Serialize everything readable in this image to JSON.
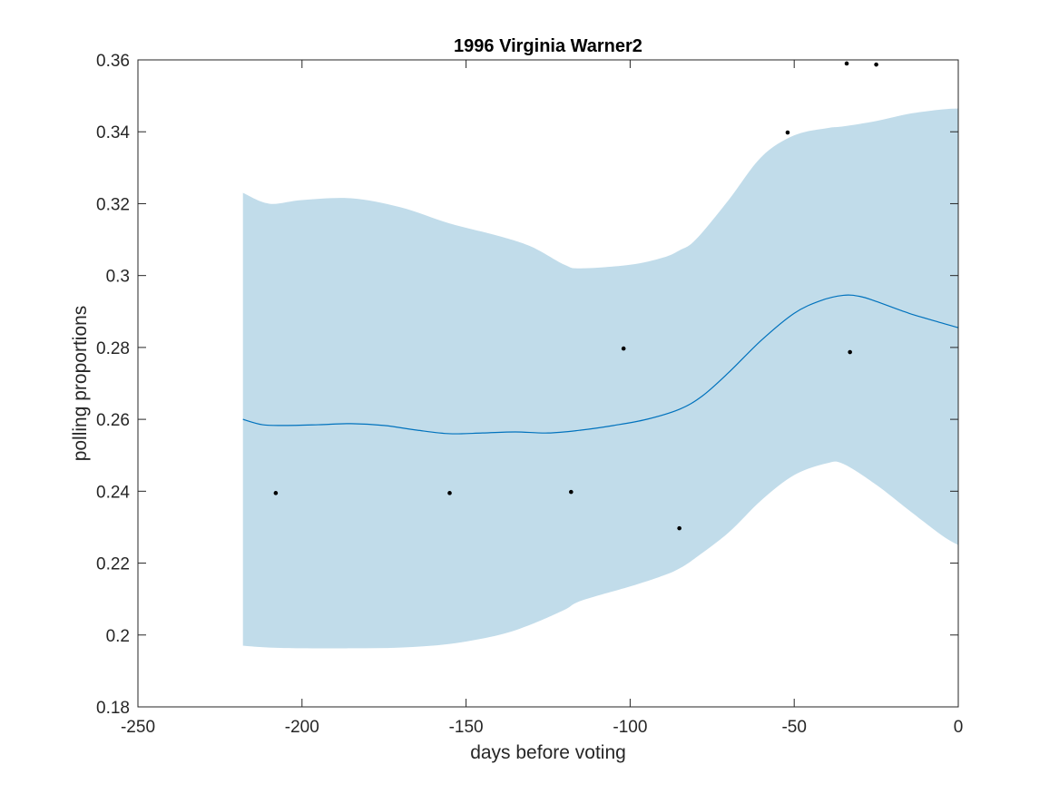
{
  "chart_data": {
    "type": "line",
    "title": "1996 Virginia Warner2",
    "xlabel": "days before voting",
    "ylabel": "polling proportions",
    "xlim": [
      -250,
      0
    ],
    "ylim": [
      0.18,
      0.36
    ],
    "xticks": [
      -250,
      -200,
      -150,
      -100,
      -50,
      0
    ],
    "xtick_labels": [
      "-250",
      "-200",
      "-150",
      "-100",
      "-50",
      "0"
    ],
    "yticks": [
      0.18,
      0.2,
      0.22,
      0.24,
      0.26,
      0.28,
      0.3,
      0.32,
      0.34,
      0.36
    ],
    "ytick_labels": [
      "0.18",
      "0.2",
      "0.22",
      "0.24",
      "0.26",
      "0.28",
      "0.3",
      "0.32",
      "0.34",
      "0.36"
    ],
    "grid": false,
    "colors": {
      "band": "#c1dcea",
      "line": "#0072bd",
      "points": "#000000",
      "axes": "#262626"
    },
    "band": {
      "x": [
        -218,
        -210,
        -200,
        -185,
        -170,
        -155,
        -140,
        -130,
        -120,
        -115,
        -100,
        -90,
        -85,
        -80,
        -70,
        -60,
        -50,
        -40,
        -35,
        -25,
        -15,
        -5,
        0
      ],
      "upper": [
        0.323,
        0.32,
        0.321,
        0.3215,
        0.319,
        0.3145,
        0.311,
        0.308,
        0.303,
        0.302,
        0.303,
        0.305,
        0.307,
        0.31,
        0.321,
        0.333,
        0.339,
        0.341,
        0.3415,
        0.343,
        0.345,
        0.3462,
        0.3465
      ],
      "lower": [
        0.197,
        0.1965,
        0.1963,
        0.1963,
        0.1965,
        0.1975,
        0.2,
        0.203,
        0.207,
        0.2095,
        0.2135,
        0.2165,
        0.2185,
        0.2215,
        0.2285,
        0.2375,
        0.2445,
        0.2478,
        0.2476,
        0.2418,
        0.2347,
        0.2277,
        0.225
      ]
    },
    "series": [
      {
        "x": [
          -218,
          -212,
          -205,
          -195,
          -185,
          -175,
          -165,
          -155,
          -145,
          -135,
          -125,
          -115,
          -105,
          -95,
          -85,
          -78,
          -70,
          -60,
          -50,
          -42,
          -35,
          -30,
          -25,
          -15,
          -5,
          0
        ],
        "values": [
          0.26,
          0.2585,
          0.2583,
          0.2585,
          0.2588,
          0.2583,
          0.257,
          0.256,
          0.2562,
          0.2565,
          0.2562,
          0.257,
          0.2583,
          0.26,
          0.2628,
          0.2665,
          0.273,
          0.282,
          0.2895,
          0.293,
          0.2945,
          0.2942,
          0.2928,
          0.2895,
          0.2868,
          0.2855
        ]
      }
    ],
    "points": {
      "x": [
        -208,
        -155,
        -118,
        -102,
        -85,
        -52,
        -34,
        -33,
        -25
      ],
      "y": [
        0.2395,
        0.2395,
        0.2398,
        0.2797,
        0.2297,
        0.3398,
        0.359,
        0.2787,
        0.3587
      ]
    }
  }
}
